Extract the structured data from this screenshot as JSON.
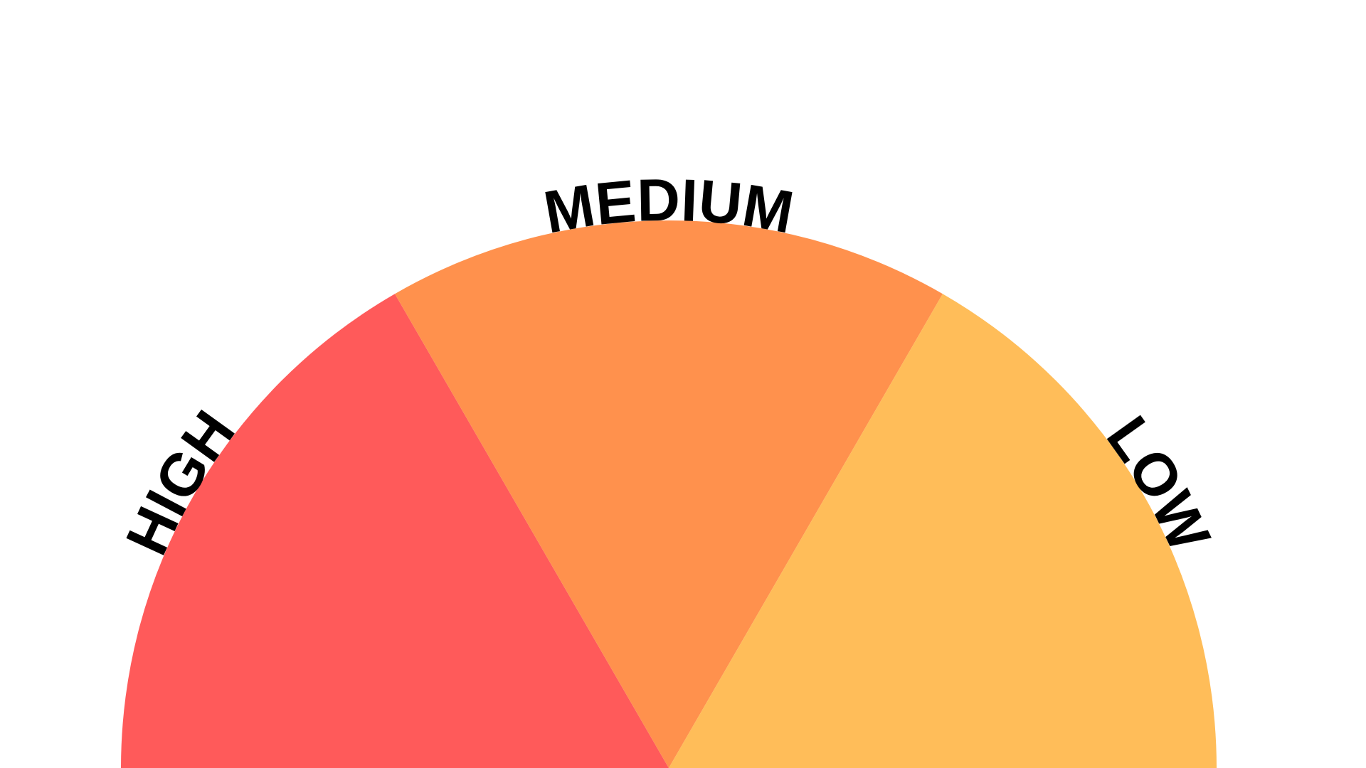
{
  "diagram": {
    "type": "semicircle-gauge",
    "background": "#ffffff",
    "label_color": "#000000",
    "segments": [
      {
        "label": "HIGH",
        "color": "#ff5a5a"
      },
      {
        "label": "MEDIUM",
        "color": "#ff914d"
      },
      {
        "label": "LOW",
        "color": "#ffbd59"
      }
    ]
  }
}
